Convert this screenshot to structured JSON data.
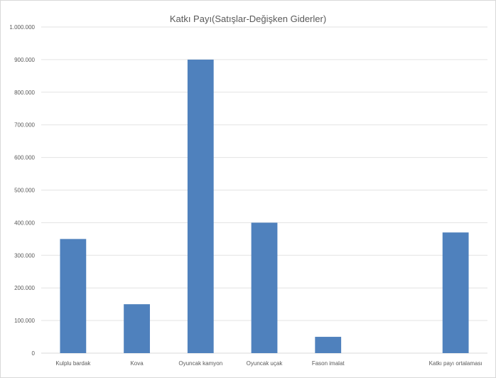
{
  "chart_data": {
    "type": "bar",
    "title": "Katkı Payı(Satışlar-Değişken Giderler)",
    "xlabel": "",
    "ylabel": "",
    "categories": [
      "Kulplu bardak",
      "Kova",
      "Oyuncak kamyon",
      "Oyuncak uçak",
      "Fason imalat",
      "",
      "Katkı payı ortalaması"
    ],
    "values": [
      350000,
      150000,
      900000,
      400000,
      50000,
      null,
      370000
    ],
    "ylim": [
      0,
      1000000
    ],
    "yticks": [
      0,
      100000,
      200000,
      300000,
      400000,
      500000,
      600000,
      700000,
      800000,
      900000,
      1000000
    ],
    "ytick_labels": [
      "0",
      "100.000",
      "200.000",
      "300.000",
      "400.000",
      "500.000",
      "600.000",
      "700.000",
      "800.000",
      "900.000",
      "1.000.000"
    ],
    "grid": true,
    "legend": "none",
    "bar_color": "#4f81bd"
  }
}
